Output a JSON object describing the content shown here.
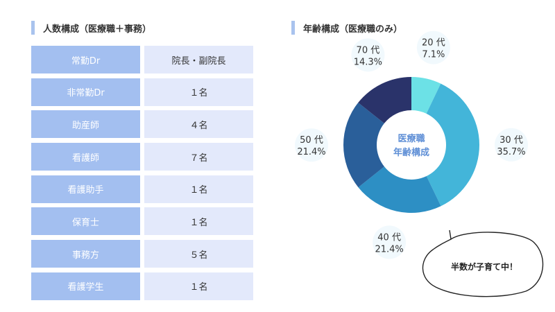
{
  "left_title": "人数構成（医療職＋事務）",
  "right_title": "年齢構成（医療職のみ）",
  "staff_rows": [
    {
      "label": "常勤Dr",
      "value": "院長・副院長"
    },
    {
      "label": "非常勤Dr",
      "value": "１名"
    },
    {
      "label": "助産師",
      "value": "４名"
    },
    {
      "label": "看護師",
      "value": "７名"
    },
    {
      "label": "看護助手",
      "value": "１名"
    },
    {
      "label": "保育士",
      "value": "１名"
    },
    {
      "label": "事務方",
      "value": "５名"
    },
    {
      "label": "看護学生",
      "value": "１名"
    }
  ],
  "callout": "半数が子育て中！",
  "chart_data": {
    "type": "pie",
    "title": "年齢構成（医療職のみ）",
    "center_label": [
      "医療職",
      "年齢構成"
    ],
    "categories": [
      "20 代",
      "30 代",
      "40 代",
      "50 代",
      "70 代"
    ],
    "values": [
      7.1,
      35.7,
      21.4,
      21.4,
      14.3
    ],
    "value_labels": [
      "7.1%",
      "35.7%",
      "21.4%",
      "21.4%",
      "14.3%"
    ],
    "colors": [
      "#6ce1e6",
      "#43b5d9",
      "#2d8fc4",
      "#2a5f9a",
      "#2a336a"
    ]
  }
}
